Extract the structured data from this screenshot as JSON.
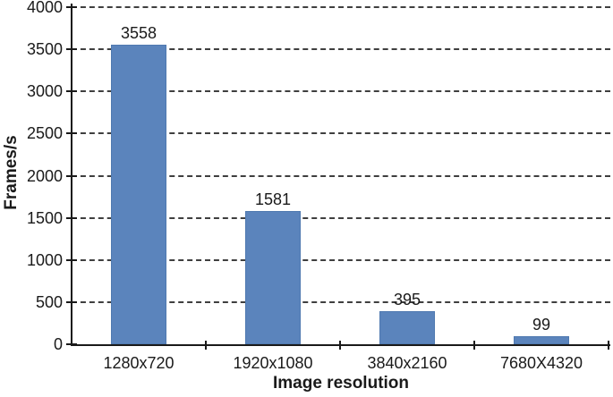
{
  "chart_data": {
    "type": "bar",
    "title": "",
    "categories": [
      "1280x720",
      "1920x1080",
      "3840x2160",
      "7680X4320"
    ],
    "values": [
      3558,
      1581,
      395,
      99
    ],
    "value_labels": [
      "3558",
      "1581",
      "395",
      "99"
    ],
    "xlabel": "Image resolution",
    "ylabel": "Frames/s",
    "ylim": [
      0,
      4000
    ],
    "ytick_step": 500,
    "yticks": [
      0,
      500,
      1000,
      1500,
      2000,
      2500,
      3000,
      3500,
      4000
    ],
    "grid": "horizontal-dashed",
    "legend": "none",
    "bar_color": "#5b84bc",
    "bar_border_color": "#4f79b0",
    "gridline_color": "#3f3f3f",
    "axis_color": "#1a1a1a",
    "text_color": "#1a1a1a"
  }
}
